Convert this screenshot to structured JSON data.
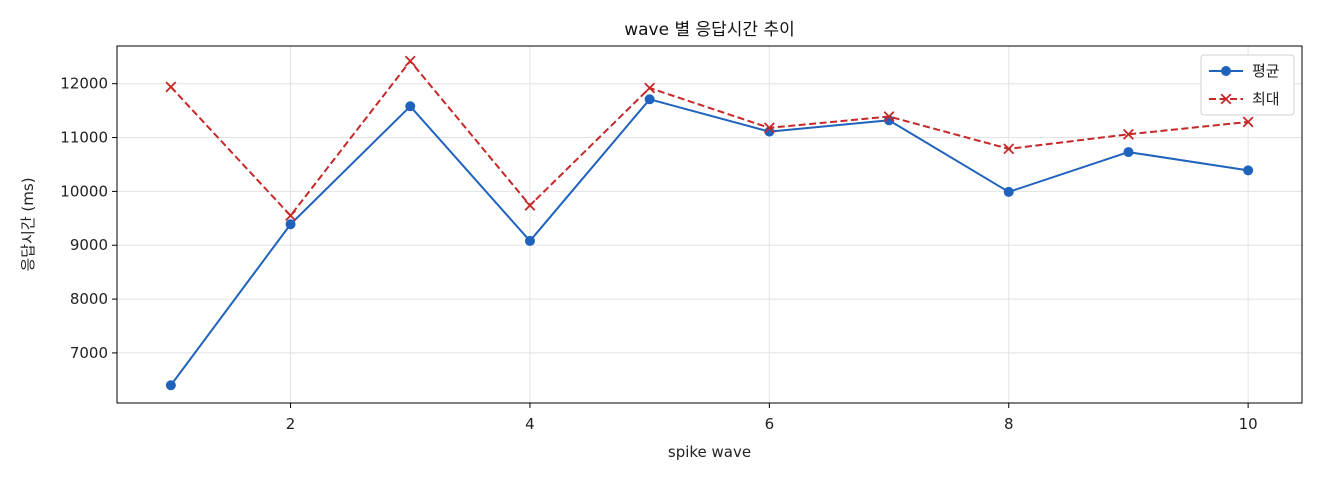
{
  "chart_data": {
    "type": "line",
    "title": "wave 별 응답시간 추이",
    "xlabel": "spike wave",
    "ylabel": "응답시간 (ms)",
    "x": [
      1,
      2,
      3,
      4,
      5,
      6,
      7,
      8,
      9,
      10
    ],
    "xlim": [
      0.55,
      10.45
    ],
    "ylim": [
      6070,
      12700
    ],
    "xticks": [
      2,
      4,
      6,
      8,
      10
    ],
    "yticks": [
      7000,
      8000,
      9000,
      10000,
      11000,
      12000
    ],
    "grid": true,
    "legend_position": "top-right",
    "series": [
      {
        "name": "평균",
        "color": "#1f63bd",
        "line_style": "solid",
        "marker": "circle",
        "values": [
          6400,
          9390,
          11580,
          9080,
          11710,
          11110,
          11320,
          9990,
          10730,
          10390
        ]
      },
      {
        "name": "최대",
        "color": "#c62828",
        "line_style": "dashed",
        "marker": "x",
        "values": [
          11940,
          9550,
          12420,
          9740,
          11920,
          11180,
          11390,
          10790,
          11060,
          11290
        ]
      }
    ]
  }
}
